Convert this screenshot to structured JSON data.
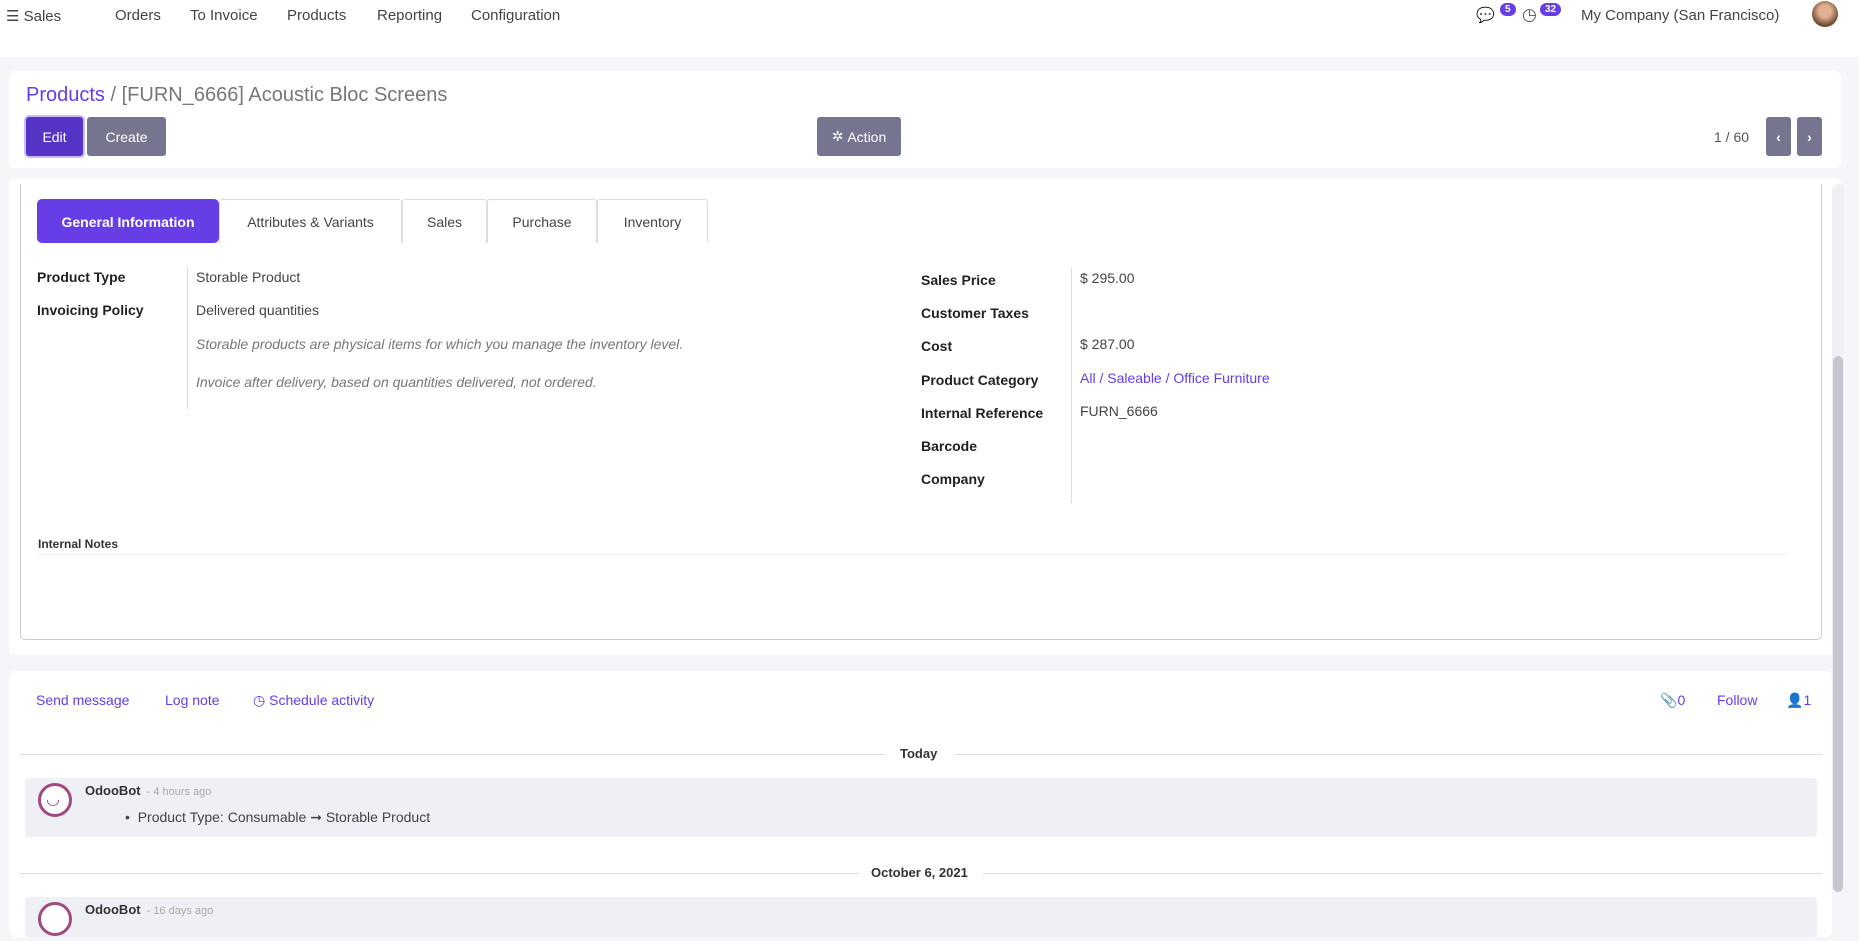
{
  "nav": {
    "app": "Sales",
    "menu": [
      "Orders",
      "To Invoice",
      "Products",
      "Reporting",
      "Configuration"
    ],
    "messages_count": "5",
    "activities_count": "32",
    "company": "My Company (San Francisco)"
  },
  "breadcrumb": {
    "parent": "Products",
    "separator": "/",
    "current": "[FURN_6666] Acoustic Bloc Screens"
  },
  "toolbar": {
    "edit": "Edit",
    "create": "Create",
    "action": "Action",
    "pager": "1 / 60"
  },
  "tabs": [
    "General Information",
    "Attributes & Variants",
    "Sales",
    "Purchase",
    "Inventory"
  ],
  "left_fields": {
    "product_type_label": "Product Type",
    "product_type": "Storable Product",
    "invoicing_label": "Invoicing Policy",
    "invoicing": "Delivered quantities",
    "help1": "Storable products are physical items for which you manage the inventory level.",
    "help2": "Invoice after delivery, based on quantities delivered, not ordered."
  },
  "right_fields": [
    {
      "label": "Sales Price",
      "value": "$ 295.00"
    },
    {
      "label": "Customer Taxes",
      "value": ""
    },
    {
      "label": "Cost",
      "value": "$ 287.00"
    },
    {
      "label": "Product Category",
      "value": "All / Saleable / Office Furniture"
    },
    {
      "label": "Internal Reference",
      "value": "FURN_6666"
    },
    {
      "label": "Barcode",
      "value": ""
    },
    {
      "label": "Company",
      "value": ""
    }
  ],
  "notes_label": "Internal Notes",
  "chatter": {
    "send": "Send message",
    "log": "Log note",
    "schedule": "Schedule activity",
    "attachments": "0",
    "follow": "Follow",
    "followers": "1",
    "groups": [
      {
        "date": "Today",
        "author": "OdooBot",
        "time": "- 4 hours ago",
        "body": "Product Type: Consumable ➞ Storable Product"
      },
      {
        "date": "October 6, 2021",
        "author": "OdooBot",
        "time": "- 16 days ago"
      }
    ]
  },
  "colors": {
    "accent": "#673de6",
    "button_gray": "#757590",
    "edit": "#5533c4"
  }
}
